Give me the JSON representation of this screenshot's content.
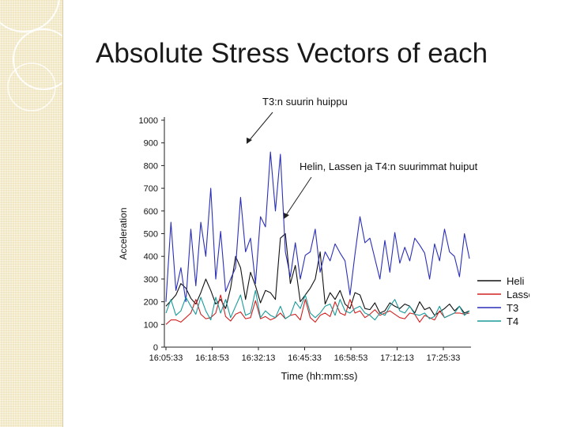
{
  "slide": {
    "title": "Absolute Stress  Vectors of each"
  },
  "chart_data": {
    "type": "line",
    "xlabel": "Time (hh:mm:ss)",
    "ylabel": "Acceleration",
    "x_ticks": [
      "16:05:33",
      "16:18:53",
      "16:32:13",
      "16:45:33",
      "16:58:53",
      "17:12:13",
      "17:25:33"
    ],
    "y_ticks": [
      0,
      100,
      200,
      300,
      400,
      500,
      600,
      700,
      800,
      900,
      1000
    ],
    "ylim": [
      0,
      1000
    ],
    "legend_position": "right",
    "annotations": [
      {
        "text": "T3:n suurin huippu"
      },
      {
        "text": "Helin, Lassen ja T4:n suurimmat huiput"
      }
    ],
    "series": [
      {
        "name": "Heli",
        "color": "#111111",
        "values": [
          180,
          205,
          230,
          280,
          260,
          215,
          190,
          240,
          300,
          250,
          190,
          210,
          170,
          260,
          400,
          350,
          210,
          330,
          270,
          195,
          250,
          240,
          210,
          480,
          500,
          280,
          360,
          200,
          230,
          260,
          300,
          420,
          190,
          240,
          210,
          250,
          190,
          170,
          240,
          230,
          170,
          165,
          195,
          150,
          160,
          195,
          180,
          170,
          190,
          180,
          150,
          200,
          165,
          175,
          140,
          155,
          170,
          190,
          160,
          180,
          150,
          160
        ]
      },
      {
        "name": "Lasse",
        "color": "#d22020",
        "values": [
          100,
          120,
          120,
          110,
          130,
          150,
          210,
          145,
          125,
          130,
          150,
          230,
          135,
          115,
          145,
          155,
          125,
          130,
          205,
          125,
          135,
          120,
          130,
          150,
          125,
          140,
          145,
          120,
          210,
          130,
          110,
          140,
          150,
          135,
          200,
          150,
          140,
          210,
          150,
          160,
          130,
          145,
          165,
          140,
          150,
          160,
          145,
          130,
          125,
          150,
          145,
          110,
          140,
          130,
          120,
          160,
          130,
          140,
          150,
          150,
          145,
          150
        ]
      },
      {
        "name": "T3",
        "color": "#2b2fb8",
        "values": [
          200,
          550,
          250,
          350,
          200,
          520,
          270,
          550,
          400,
          700,
          300,
          510,
          245,
          300,
          350,
          660,
          420,
          480,
          280,
          575,
          530,
          860,
          600,
          850,
          420,
          310,
          460,
          300,
          405,
          420,
          520,
          330,
          420,
          380,
          455,
          415,
          380,
          230,
          410,
          575,
          460,
          480,
          390,
          300,
          470,
          330,
          505,
          370,
          440,
          380,
          480,
          450,
          415,
          300,
          455,
          380,
          520,
          420,
          400,
          310,
          500,
          390
        ]
      },
      {
        "name": "T4",
        "color": "#1a9a9a",
        "values": [
          150,
          210,
          140,
          160,
          220,
          180,
          145,
          220,
          160,
          120,
          220,
          150,
          210,
          130,
          180,
          230,
          140,
          150,
          250,
          130,
          160,
          140,
          130,
          180,
          125,
          140,
          200,
          170,
          230,
          150,
          130,
          150,
          180,
          190,
          140,
          210,
          160,
          150,
          170,
          180,
          150,
          140,
          120,
          150,
          140,
          180,
          210,
          160,
          150,
          180,
          145,
          140,
          150,
          125,
          135,
          180,
          130,
          140,
          150,
          180,
          140,
          160
        ]
      }
    ]
  }
}
